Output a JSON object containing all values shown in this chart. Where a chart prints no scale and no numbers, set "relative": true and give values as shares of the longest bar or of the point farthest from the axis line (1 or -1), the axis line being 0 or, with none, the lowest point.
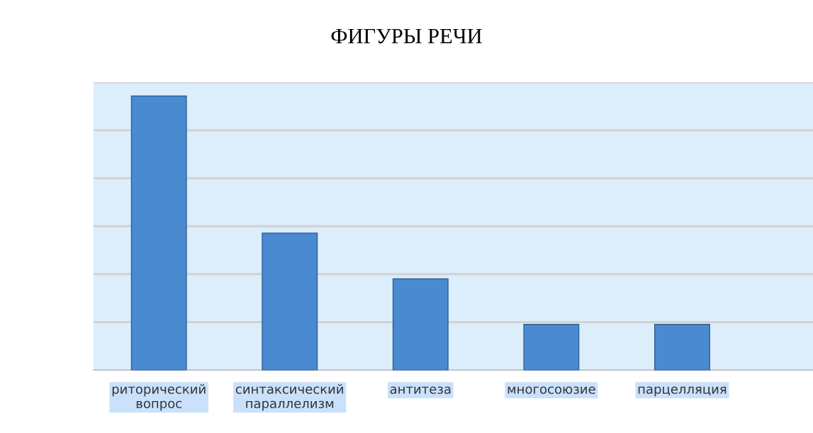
{
  "chart_data": {
    "type": "bar",
    "title": "ФИГУРЫ РЕЧИ",
    "categories": [
      "риторический\nвопрос",
      "синтаксический\nпараллелизм",
      "антитеза",
      "многосоюзие",
      "парцелляция"
    ],
    "values": [
      1,
      0.5,
      0.333,
      0.167,
      0.167
    ],
    "color": "#4a8ad0",
    "relative": true,
    "grid": "y"
  }
}
